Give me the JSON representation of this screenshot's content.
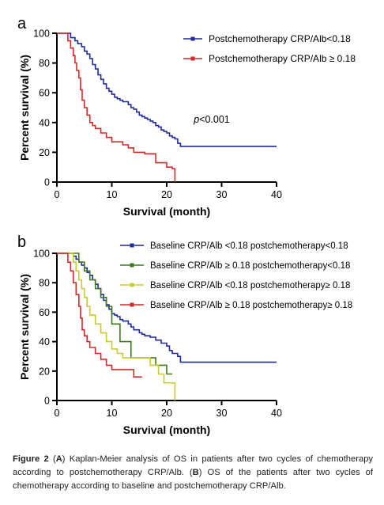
{
  "chart_data": [
    {
      "type": "line",
      "panel_label": "a",
      "xlabel": "Survival (month)",
      "ylabel": "Percent survival (%)",
      "xlim": [
        0,
        40
      ],
      "ylim": [
        0,
        100
      ],
      "xticks": [
        "0",
        "10",
        "20",
        "30",
        "40"
      ],
      "yticks": [
        "0",
        "20",
        "40",
        "60",
        "80",
        "100"
      ],
      "legend_position": "top-right",
      "annotation": "p<0.001",
      "grid": false,
      "series": [
        {
          "name": "Postchemotherapy CRP/Alb<0.18",
          "color": "#1f2a9e",
          "x": [
            0,
            2.5,
            3.3,
            3.8,
            4.5,
            5.0,
            5.5,
            6.0,
            6.5,
            7.0,
            7.5,
            8.0,
            8.5,
            9.0,
            9.5,
            10.0,
            10.5,
            11.0,
            11.5,
            12.0,
            13.0,
            13.5,
            14.0,
            14.5,
            15.0,
            15.5,
            16.0,
            16.5,
            17.0,
            17.5,
            18.0,
            18.5,
            19.0,
            19.5,
            20.0,
            20.5,
            21.0,
            21.5,
            22.0,
            22.5,
            40
          ],
          "y": [
            100,
            97,
            95,
            93,
            91,
            88,
            86,
            83,
            79,
            76,
            72,
            69,
            66,
            63,
            61,
            59,
            57,
            56,
            55,
            54,
            52,
            50,
            49,
            47,
            45,
            44,
            43,
            42,
            41,
            40,
            38,
            37,
            35,
            34,
            33,
            31,
            30,
            29,
            26,
            24,
            24
          ]
        },
        {
          "name": "Postchemotherapy CRP/Alb ≥ 0.18",
          "color": "#d42a2a",
          "x": [
            0,
            2.0,
            2.5,
            3.0,
            3.3,
            3.6,
            4.0,
            4.3,
            4.6,
            5.0,
            5.5,
            6.0,
            6.5,
            7.0,
            8.0,
            9.0,
            10.0,
            12.0,
            13.0,
            14.0,
            16.0,
            17.0,
            18.0,
            19.0,
            20.0,
            21.0,
            21.5
          ],
          "y": [
            100,
            95,
            90,
            85,
            80,
            75,
            70,
            62,
            55,
            50,
            45,
            40,
            38,
            36,
            33,
            30,
            27,
            25,
            23,
            20,
            19,
            19,
            13,
            13,
            10,
            9,
            0
          ]
        }
      ]
    },
    {
      "type": "line",
      "panel_label": "b",
      "xlabel": "Survival (month)",
      "ylabel": "Percent survival (%)",
      "xlim": [
        0,
        40
      ],
      "ylim": [
        0,
        100
      ],
      "xticks": [
        "0",
        "10",
        "20",
        "30",
        "40"
      ],
      "yticks": [
        "0",
        "20",
        "40",
        "60",
        "80",
        "100"
      ],
      "legend_position": "top-right",
      "grid": false,
      "series": [
        {
          "name": "Baseline CRP/Alb <0.18 postchemotherapy<0.18",
          "color": "#1f2a9e",
          "x": [
            0,
            3.0,
            3.5,
            4.0,
            4.5,
            5.0,
            5.5,
            6.0,
            6.5,
            7.0,
            7.5,
            8.0,
            8.5,
            9.0,
            9.5,
            10.0,
            10.5,
            11.0,
            11.5,
            12.0,
            13.0,
            13.5,
            14.0,
            15.0,
            15.5,
            16.0,
            17.0,
            18.0,
            19.0,
            20.0,
            20.5,
            21.0,
            22.0,
            22.5,
            40
          ],
          "y": [
            100,
            98,
            96,
            94,
            92,
            90,
            87,
            85,
            82,
            79,
            76,
            72,
            68,
            65,
            62,
            59,
            58,
            57,
            55,
            54,
            52,
            50,
            48,
            46,
            45,
            44,
            43,
            41,
            39,
            37,
            34,
            32,
            30,
            26,
            26
          ]
        },
        {
          "name": "Baseline  CRP/Alb ≥ 0.18 postchemotherapy<0.18",
          "color": "#3d7a1e",
          "x": [
            0,
            4.0,
            5.0,
            6.0,
            7.0,
            8.0,
            9.0,
            10.0,
            11.5,
            13.5,
            18.0,
            20.0,
            21.0
          ],
          "y": [
            100,
            94,
            88,
            82,
            76,
            70,
            64,
            52,
            40,
            29,
            24,
            18,
            18
          ]
        },
        {
          "name": "Baseline  CRP/Alb <0.18 postchemotherapy≥ 0.18",
          "color": "#c8cc2e",
          "x": [
            0,
            3.0,
            3.5,
            4.0,
            4.5,
            5.0,
            5.5,
            6.0,
            7.0,
            8.0,
            9.0,
            10.0,
            11.0,
            12.0,
            17.0,
            18.5,
            19.5,
            21.0,
            21.5
          ],
          "y": [
            100,
            94,
            88,
            82,
            76,
            70,
            64,
            58,
            52,
            46,
            40,
            35,
            32,
            29,
            24,
            18,
            12,
            12,
            0
          ]
        },
        {
          "name": "Baseline CRP/Alb ≥ 0.18 postchemotherapy≥ 0.18",
          "color": "#d42a2a",
          "x": [
            0,
            2.0,
            2.5,
            3.0,
            3.5,
            4.0,
            4.3,
            4.6,
            5.0,
            5.5,
            6.0,
            7.0,
            8.0,
            9.0,
            10.0,
            13.0,
            14.0,
            15.5
          ],
          "y": [
            100,
            94,
            88,
            80,
            72,
            64,
            56,
            48,
            44,
            40,
            36,
            32,
            28,
            24,
            21,
            21,
            16,
            16
          ]
        }
      ]
    }
  ],
  "caption": {
    "figure_label": "Figure 2",
    "text_1": " (",
    "label_a": "A",
    "text_2": ") Kaplan-Meier analysis of OS in patients after two cycles of chemotherapy according to postchemotherapy CRP/Alb. (",
    "label_b": "B",
    "text_3": ") OS of the patients after two cycles of chemotherapy according to baseline and postchemotherapy CRP/Alb."
  }
}
